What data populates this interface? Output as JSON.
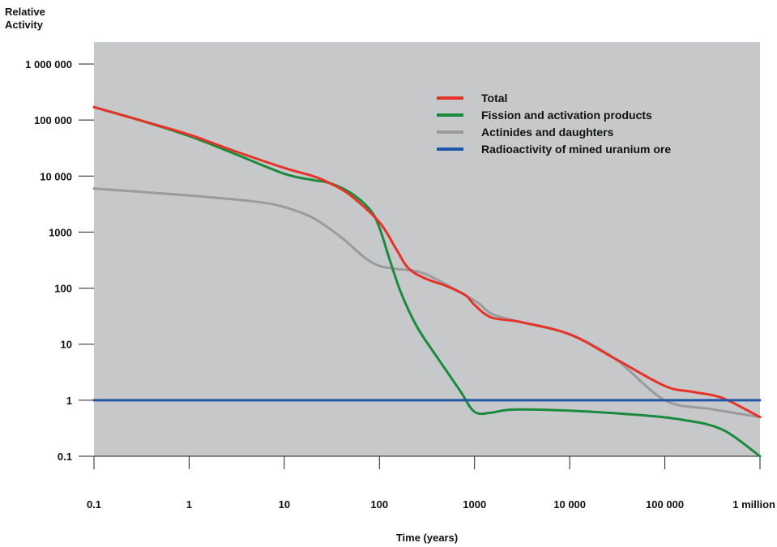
{
  "chart_data": {
    "type": "line",
    "title": "",
    "ylabel_lines": [
      "Relative",
      "Activity"
    ],
    "xlabel": "Time (years)",
    "x_scale": "log",
    "y_scale": "log",
    "xlim": [
      0.1,
      1000000
    ],
    "ylim": [
      0.1,
      1000000
    ],
    "grid": false,
    "legend_position": "top-right",
    "background_color": "#c7c8ca",
    "x_ticks": [
      {
        "value": 0.1,
        "label": "0.1"
      },
      {
        "value": 1,
        "label": "1"
      },
      {
        "value": 10,
        "label": "10"
      },
      {
        "value": 100,
        "label": "100"
      },
      {
        "value": 1000,
        "label": "1000"
      },
      {
        "value": 10000,
        "label": "10 000"
      },
      {
        "value": 100000,
        "label": "100 000"
      },
      {
        "value": 1000000,
        "label": "1 million"
      }
    ],
    "y_ticks": [
      {
        "value": 1000000,
        "label": "1 000 000"
      },
      {
        "value": 100000,
        "label": "100 000"
      },
      {
        "value": 10000,
        "label": "10 000"
      },
      {
        "value": 1000,
        "label": "1000"
      },
      {
        "value": 100,
        "label": "100"
      },
      {
        "value": 10,
        "label": "10"
      },
      {
        "value": 1,
        "label": "1"
      },
      {
        "value": 0.1,
        "label": "0.1"
      }
    ],
    "series": [
      {
        "name": "Total",
        "color": "#e63329",
        "x": [
          0.1,
          0.3,
          1,
          3,
          10,
          20,
          30,
          50,
          100,
          150,
          200,
          300,
          500,
          800,
          1000,
          1500,
          3000,
          10000,
          30000,
          100000,
          200000,
          400000,
          1000000
        ],
        "y": [
          170000,
          100000,
          55000,
          28000,
          14000,
          10000,
          7500,
          4500,
          1500,
          500,
          230,
          150,
          110,
          75,
          50,
          30,
          25,
          15,
          5.5,
          1.8,
          1.4,
          1.1,
          0.5
        ]
      },
      {
        "name": "Fission and activation products",
        "color": "#1a8a3d",
        "x": [
          0.1,
          0.3,
          1,
          3,
          10,
          20,
          30,
          50,
          80,
          100,
          130,
          170,
          250,
          400,
          700,
          1000,
          1500,
          2500,
          10000,
          50000,
          150000,
          400000,
          1000000
        ],
        "y": [
          170000,
          100000,
          52000,
          25000,
          11000,
          8500,
          7500,
          5000,
          2500,
          1200,
          300,
          80,
          20,
          6,
          1.5,
          0.62,
          0.6,
          0.68,
          0.65,
          0.55,
          0.45,
          0.3,
          0.1
        ]
      },
      {
        "name": "Actinides and daughters",
        "color": "#9a9b9d",
        "x": [
          0.1,
          1,
          5,
          10,
          20,
          40,
          70,
          100,
          150,
          300,
          1000,
          1500,
          3000,
          10000,
          30000,
          100000,
          300000,
          1000000
        ],
        "y": [
          6000,
          4500,
          3500,
          2800,
          1800,
          800,
          350,
          250,
          220,
          180,
          60,
          35,
          25,
          15,
          5.5,
          1.0,
          0.7,
          0.5
        ]
      },
      {
        "name": "Radioactivity of mined uranium ore",
        "color": "#2056a8",
        "x": [
          0.1,
          1000000
        ],
        "y": [
          1,
          1
        ]
      }
    ]
  }
}
